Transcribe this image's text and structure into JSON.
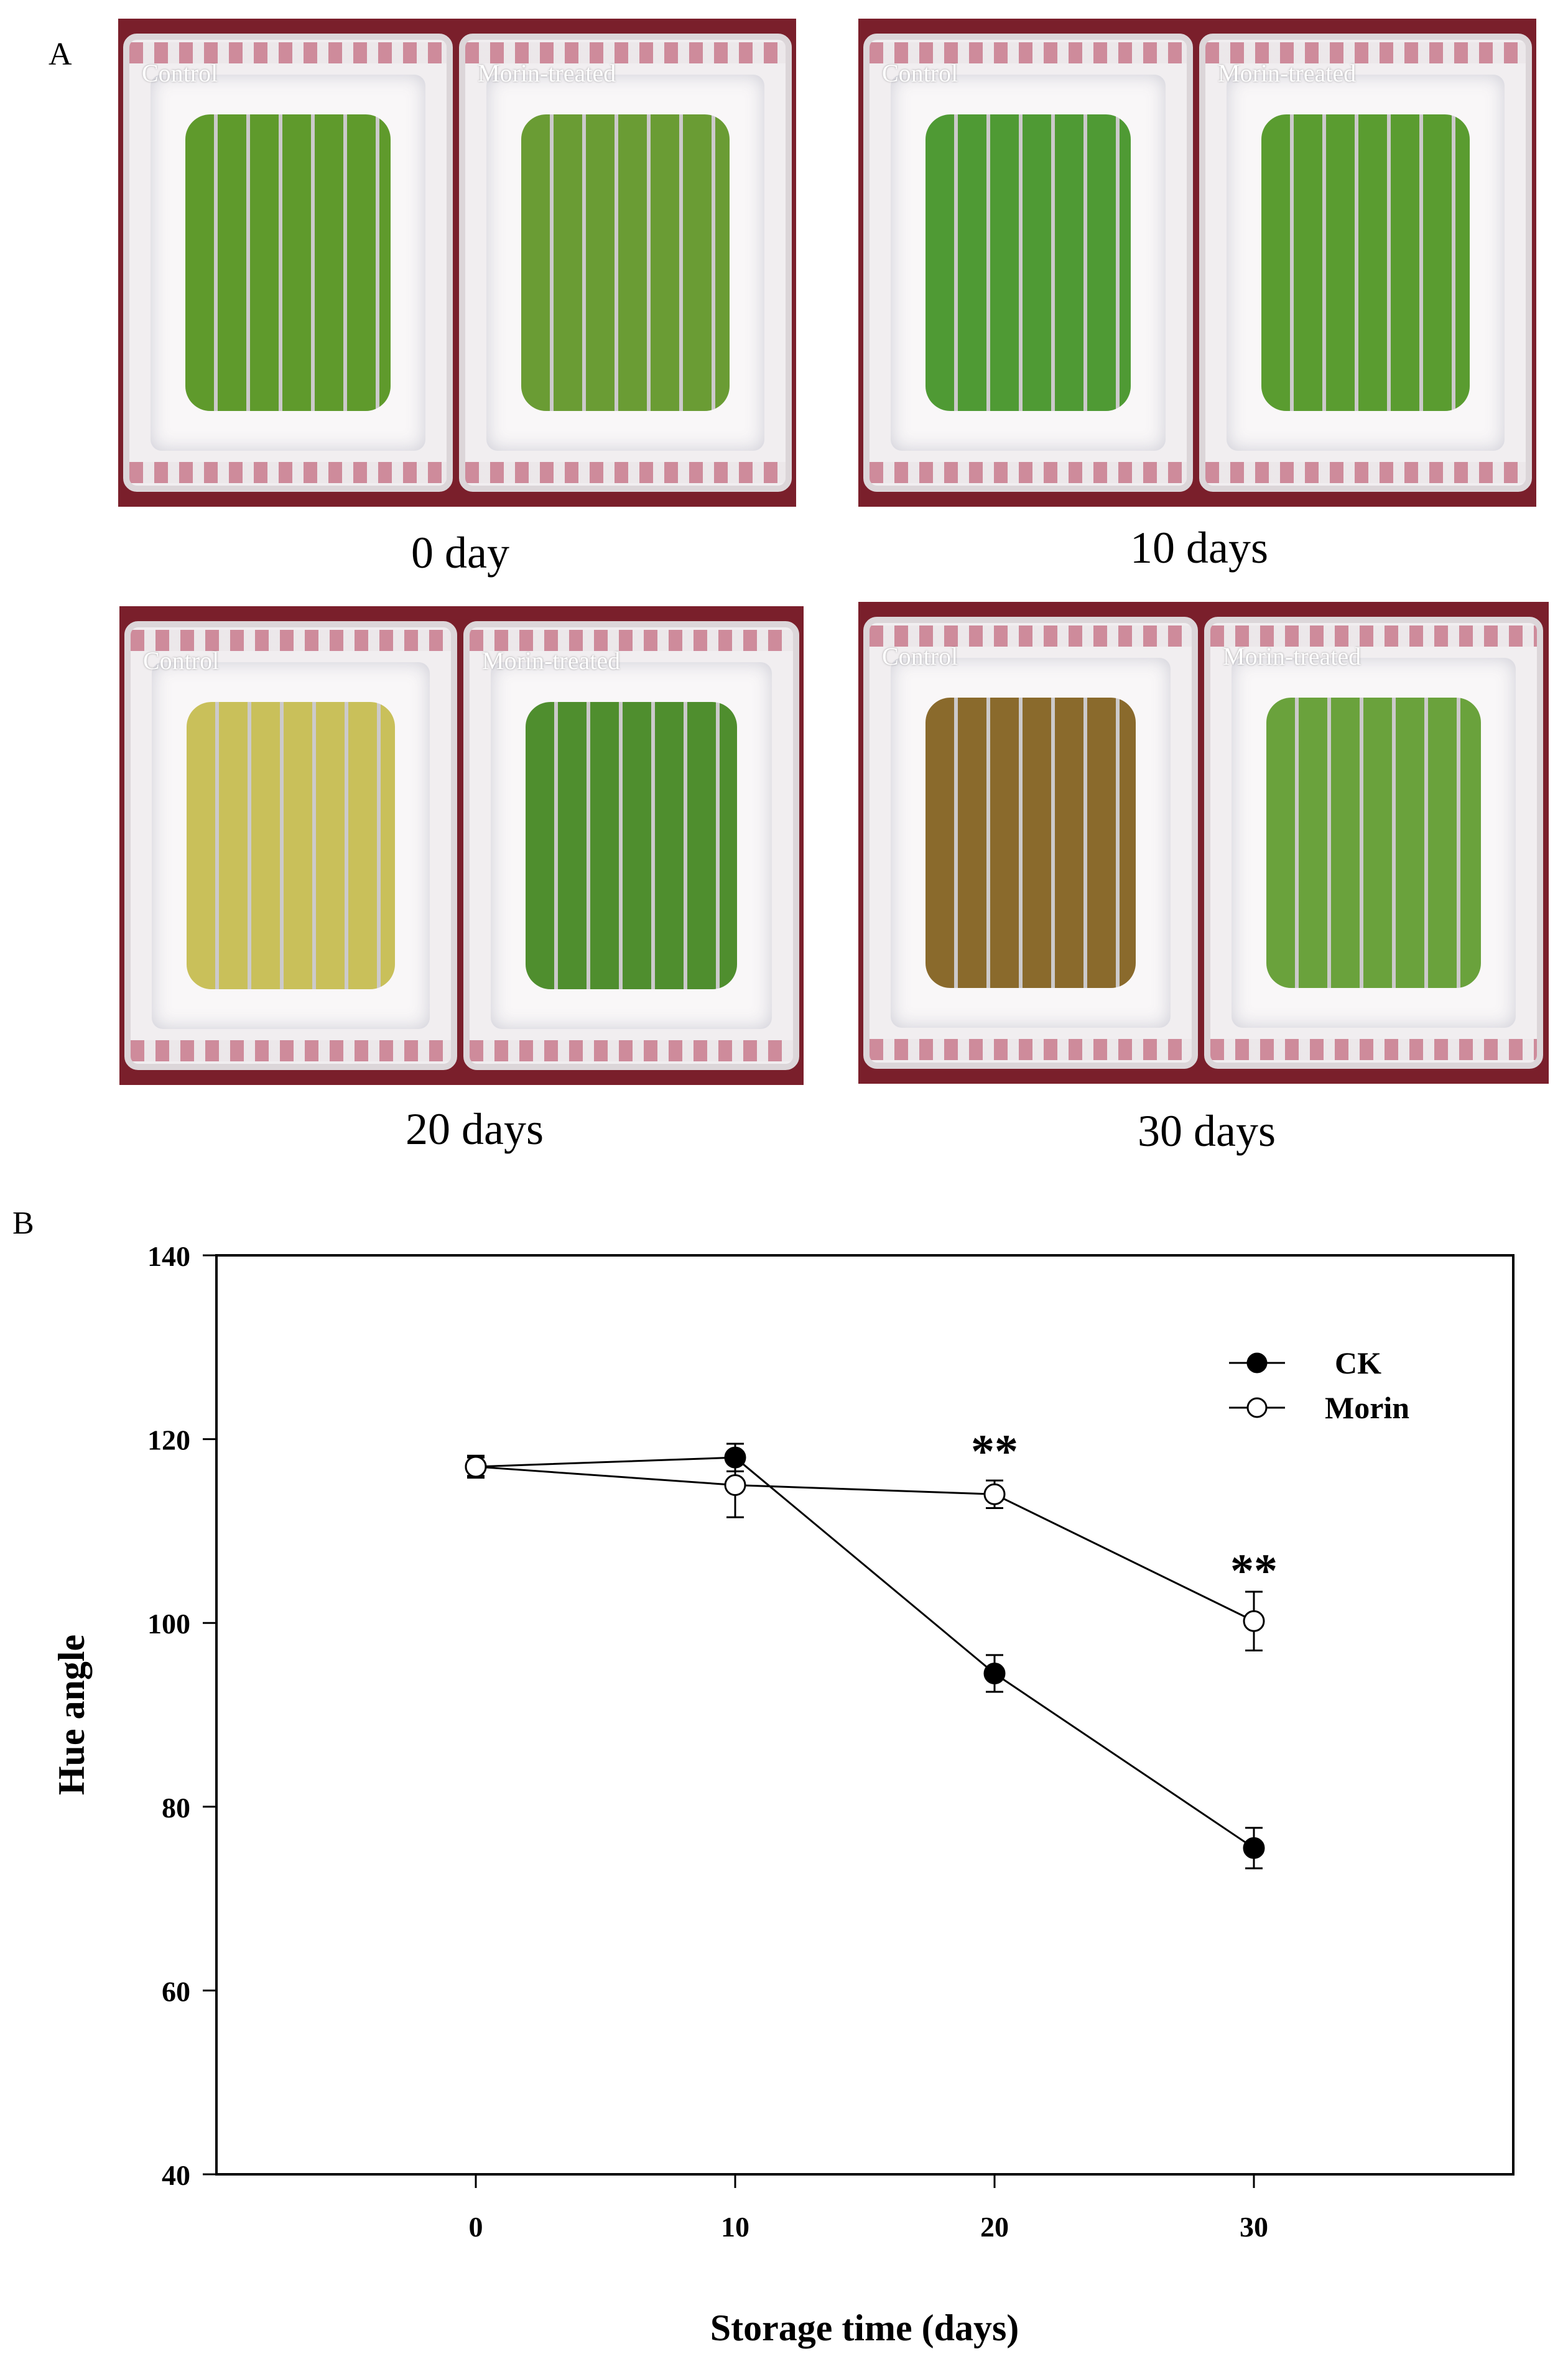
{
  "panel_a": {
    "letter": "A",
    "photos": [
      {
        "caption": "0 day",
        "labels": [
          "Control",
          "Morin-treated"
        ],
        "fruit_colors": [
          "#5f9a2c",
          "#6a9c34"
        ]
      },
      {
        "caption": "10 days",
        "labels": [
          "Control",
          "Morin-treated"
        ],
        "fruit_colors": [
          "#4f9a34",
          "#5a9c30"
        ]
      },
      {
        "caption": "20 days",
        "labels": [
          "Control",
          "Morin-treated"
        ],
        "fruit_colors": [
          "#c9c05a",
          "#4f8e2e"
        ]
      },
      {
        "caption": "30 days",
        "labels": [
          "Control",
          "Morin-treated"
        ],
        "fruit_colors": [
          "#8a6a2c",
          "#6aa23c"
        ]
      }
    ]
  },
  "panel_b": {
    "letter": "B"
  },
  "chart_data": {
    "type": "line",
    "xlabel": "Storage time (days)",
    "ylabel": "Hue angle",
    "x": [
      0,
      10,
      20,
      30
    ],
    "xlim": [
      -10,
      40
    ],
    "xticks": [
      0,
      10,
      20,
      30
    ],
    "ylim": [
      40,
      140
    ],
    "yticks": [
      40,
      60,
      80,
      100,
      120,
      140
    ],
    "series": [
      {
        "name": "CK",
        "marker": "filled-circle",
        "values": [
          117,
          118,
          94.5,
          75.5
        ],
        "errors": [
          1.0,
          1.5,
          2.0,
          2.2
        ]
      },
      {
        "name": "Morin",
        "marker": "open-circle",
        "values": [
          117,
          115,
          114,
          100.2
        ],
        "errors": [
          1.2,
          3.5,
          1.5,
          3.2
        ]
      }
    ],
    "annotations": [
      {
        "x": 20,
        "y": 119,
        "text": "**"
      },
      {
        "x": 30,
        "y": 106,
        "text": "**"
      }
    ],
    "legend_position": "top-right"
  }
}
